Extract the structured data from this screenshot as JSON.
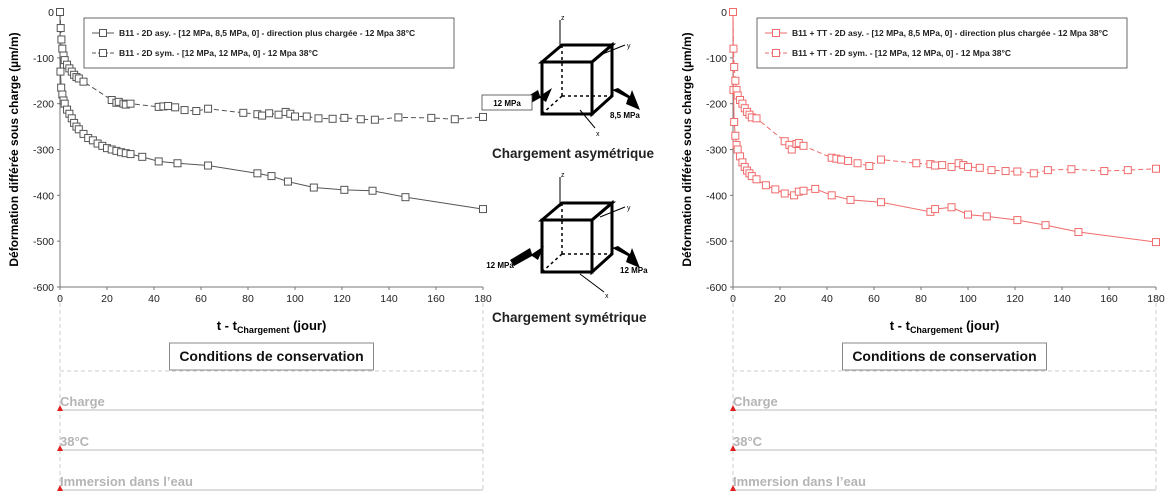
{
  "chart_data": [
    {
      "type": "scatter",
      "xlabel": "t - t",
      "xlabel_sub": "Chargement",
      "xlabel_end": " (jour)",
      "ylabel": "Déformation différée sous charge (µm/m)",
      "xlim": [
        0,
        180
      ],
      "ylim": [
        -600,
        0
      ],
      "xticks": [
        0,
        20,
        40,
        60,
        80,
        100,
        120,
        140,
        160,
        180
      ],
      "yticks": [
        0,
        -100,
        -200,
        -300,
        -400,
        -500,
        -600
      ],
      "grid": false,
      "legend_position": "top-left",
      "series": [
        {
          "name": "B11 - 2D asy. - [12 MPa, 8,5 MPa, 0] - direction plus chargée - 12 Mpa 38°C",
          "color": "#555555",
          "line": "solid",
          "marker": "square",
          "x": [
            0,
            0.2,
            0.5,
            1,
            1.5,
            2,
            3,
            4,
            5,
            6,
            7,
            8,
            10,
            12,
            14,
            16,
            18,
            20,
            22,
            24,
            26,
            28,
            30,
            35,
            42,
            50,
            63,
            84,
            90,
            97,
            108,
            121,
            133,
            147,
            180
          ],
          "y": [
            0,
            -130,
            -165,
            -180,
            -193,
            -200,
            -213,
            -222,
            -232,
            -242,
            -250,
            -256,
            -266,
            -275,
            -280,
            -287,
            -292,
            -297,
            -300,
            -303,
            -306,
            -308,
            -310,
            -316,
            -326,
            -330,
            -335,
            -352,
            -358,
            -370,
            -383,
            -388,
            -390,
            -404,
            -430
          ]
        },
        {
          "name": "B11 - 2D sym. - [12 MPa, 12 MPa, 0]  - 12 Mpa 38°C",
          "color": "#555555",
          "line": "dashed",
          "marker": "square",
          "x": [
            0,
            0.3,
            0.6,
            1,
            1.5,
            2,
            3,
            4,
            5,
            6,
            7,
            8,
            10,
            22,
            24,
            25,
            27,
            28,
            30,
            42,
            44,
            46,
            49,
            53,
            58,
            63,
            78,
            84,
            86,
            89,
            93,
            96,
            98,
            100,
            105,
            110,
            116,
            121,
            128,
            134,
            144,
            158,
            168,
            180
          ],
          "y": [
            0,
            -35,
            -60,
            -80,
            -95,
            -105,
            -115,
            -123,
            -130,
            -137,
            -142,
            -145,
            -152,
            -192,
            -198,
            -196,
            -200,
            -202,
            -200,
            -207,
            -206,
            -205,
            -208,
            -214,
            -216,
            -211,
            -220,
            -223,
            -226,
            -221,
            -224,
            -218,
            -222,
            -228,
            -228,
            -232,
            -233,
            -231,
            -234,
            -235,
            -230,
            -231,
            -234,
            -229
          ]
        }
      ]
    },
    {
      "type": "scatter",
      "xlabel": "t - t",
      "xlabel_sub": "Chargement",
      "xlabel_end": " (jour)",
      "ylabel": "Déformation différée sous charge (µm/m)",
      "xlim": [
        0,
        180
      ],
      "ylim": [
        -600,
        0
      ],
      "xticks": [
        0,
        20,
        40,
        60,
        80,
        100,
        120,
        140,
        160,
        180
      ],
      "yticks": [
        0,
        -100,
        -200,
        -300,
        -400,
        -500,
        -600
      ],
      "grid": false,
      "legend_position": "top-left",
      "series": [
        {
          "name": "B11 + TT - 2D asy. - [12 MPa, 8,5 MPa, 0] - direction plus chargée - 12 Mpa 38°C",
          "color": "#f06b6b",
          "line": "solid",
          "marker": "square",
          "x": [
            0,
            0.2,
            0.5,
            1,
            1.5,
            2,
            3,
            4,
            5,
            6,
            7,
            8,
            10,
            14,
            18,
            22,
            26,
            28,
            30,
            35,
            42,
            50,
            63,
            84,
            86,
            93,
            100,
            108,
            121,
            133,
            147,
            180
          ],
          "y": [
            0,
            -170,
            -240,
            -270,
            -290,
            -300,
            -315,
            -328,
            -338,
            -346,
            -352,
            -358,
            -365,
            -378,
            -387,
            -396,
            -400,
            -392,
            -390,
            -386,
            -400,
            -410,
            -415,
            -436,
            -430,
            -426,
            -442,
            -446,
            -454,
            -465,
            -480,
            -502
          ]
        },
        {
          "name": "B11 + TT - 2D sym. - [12 MPa, 12 MPa, 0]  - 12 Mpa 38°C",
          "color": "#f06b6b",
          "line": "dashed",
          "marker": "square",
          "x": [
            0,
            0.2,
            0.5,
            1,
            1.5,
            2,
            3,
            4,
            5,
            6,
            7,
            8,
            10,
            22,
            24,
            25,
            27,
            28,
            30,
            42,
            44,
            46,
            49,
            53,
            58,
            63,
            78,
            84,
            86,
            89,
            93,
            96,
            98,
            100,
            105,
            110,
            116,
            121,
            128,
            134,
            144,
            158,
            168,
            180
          ],
          "y": [
            0,
            -80,
            -120,
            -150,
            -170,
            -182,
            -192,
            -200,
            -210,
            -218,
            -224,
            -230,
            -232,
            -282,
            -290,
            -300,
            -288,
            -286,
            -292,
            -318,
            -320,
            -322,
            -325,
            -330,
            -336,
            -322,
            -330,
            -332,
            -335,
            -334,
            -338,
            -330,
            -334,
            -338,
            -340,
            -345,
            -347,
            -348,
            -352,
            -345,
            -343,
            -347,
            -345,
            -342
          ]
        }
      ]
    }
  ],
  "conditions": {
    "title": "Conditions de conservation",
    "rows": [
      "Charge",
      "38°C",
      "Immersion dans l’eau"
    ]
  },
  "middle": {
    "asym": {
      "caption": "Chargement asymétrique",
      "left_load": "12 MPa",
      "right_load": "8,5 MPa"
    },
    "sym": {
      "caption": "Chargement symétrique",
      "left_load": "12 MPa",
      "right_load": "12 MPa"
    },
    "axes": {
      "z": "z",
      "y": "y",
      "x": "x"
    }
  }
}
